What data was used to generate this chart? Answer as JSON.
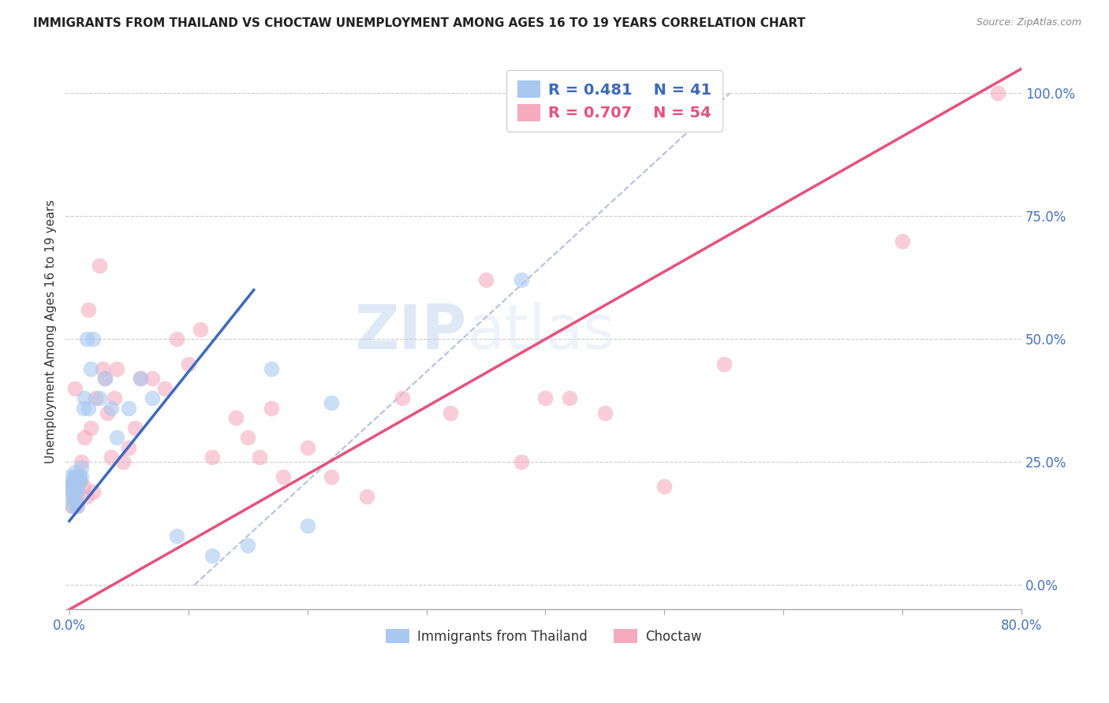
{
  "title": "IMMIGRANTS FROM THAILAND VS CHOCTAW UNEMPLOYMENT AMONG AGES 16 TO 19 YEARS CORRELATION CHART",
  "source": "Source: ZipAtlas.com",
  "ylabel": "Unemployment Among Ages 16 to 19 years",
  "xmin": 0.0,
  "xmax": 0.8,
  "ymin": -0.05,
  "ymax": 1.08,
  "yticks": [
    0.0,
    0.25,
    0.5,
    0.75,
    1.0
  ],
  "ytick_labels": [
    "0.0%",
    "25.0%",
    "50.0%",
    "75.0%",
    "100.0%"
  ],
  "xtick_labels": [
    "0.0%",
    "",
    "",
    "",
    "",
    "",
    "",
    "",
    "80.0%"
  ],
  "legend_blue_label": "Immigrants from Thailand",
  "legend_pink_label": "Choctaw",
  "blue_R": "0.481",
  "blue_N": "41",
  "pink_R": "0.707",
  "pink_N": "54",
  "blue_color": "#a8c8f0",
  "pink_color": "#f5aac0",
  "blue_line_color": "#3a6abf",
  "pink_line_color": "#e8507a",
  "dashed_line_color": "#aabbdd",
  "watermark_zip": "ZIP",
  "watermark_atlas": "atlas",
  "blue_scatter_x": [
    0.001,
    0.001,
    0.002,
    0.002,
    0.003,
    0.003,
    0.003,
    0.004,
    0.004,
    0.005,
    0.005,
    0.005,
    0.006,
    0.006,
    0.007,
    0.007,
    0.008,
    0.009,
    0.01,
    0.01,
    0.012,
    0.013,
    0.015,
    0.016,
    0.018,
    0.02,
    0.025,
    0.03,
    0.035,
    0.04,
    0.05,
    0.06,
    0.07,
    0.09,
    0.12,
    0.15,
    0.17,
    0.2,
    0.22,
    0.38,
    0.5
  ],
  "blue_scatter_y": [
    0.2,
    0.22,
    0.18,
    0.2,
    0.16,
    0.19,
    0.21,
    0.17,
    0.22,
    0.23,
    0.2,
    0.18,
    0.22,
    0.16,
    0.19,
    0.2,
    0.22,
    0.21,
    0.24,
    0.22,
    0.36,
    0.38,
    0.5,
    0.36,
    0.44,
    0.5,
    0.38,
    0.42,
    0.36,
    0.3,
    0.36,
    0.42,
    0.38,
    0.1,
    0.06,
    0.08,
    0.44,
    0.12,
    0.37,
    0.62,
    0.99
  ],
  "pink_scatter_x": [
    0.001,
    0.002,
    0.003,
    0.004,
    0.005,
    0.005,
    0.006,
    0.007,
    0.008,
    0.009,
    0.01,
    0.012,
    0.013,
    0.015,
    0.016,
    0.018,
    0.02,
    0.022,
    0.025,
    0.028,
    0.03,
    0.032,
    0.035,
    0.038,
    0.04,
    0.045,
    0.05,
    0.055,
    0.06,
    0.07,
    0.08,
    0.09,
    0.1,
    0.11,
    0.12,
    0.14,
    0.15,
    0.16,
    0.17,
    0.18,
    0.2,
    0.22,
    0.25,
    0.28,
    0.32,
    0.35,
    0.38,
    0.4,
    0.42,
    0.45,
    0.5,
    0.55,
    0.7,
    0.78
  ],
  "pink_scatter_y": [
    0.2,
    0.16,
    0.18,
    0.2,
    0.22,
    0.4,
    0.17,
    0.16,
    0.22,
    0.21,
    0.25,
    0.2,
    0.3,
    0.18,
    0.56,
    0.32,
    0.19,
    0.38,
    0.65,
    0.44,
    0.42,
    0.35,
    0.26,
    0.38,
    0.44,
    0.25,
    0.28,
    0.32,
    0.42,
    0.42,
    0.4,
    0.5,
    0.45,
    0.52,
    0.26,
    0.34,
    0.3,
    0.26,
    0.36,
    0.22,
    0.28,
    0.22,
    0.18,
    0.38,
    0.35,
    0.62,
    0.25,
    0.38,
    0.38,
    0.35,
    0.2,
    0.45,
    0.7,
    1.0
  ],
  "blue_line_x": [
    0.0,
    0.155
  ],
  "blue_line_y": [
    0.13,
    0.6
  ],
  "pink_line_x": [
    0.0,
    0.8
  ],
  "pink_line_y": [
    -0.05,
    1.05
  ],
  "dash_line_x": [
    0.105,
    0.555
  ],
  "dash_line_y": [
    0.0,
    1.0
  ]
}
